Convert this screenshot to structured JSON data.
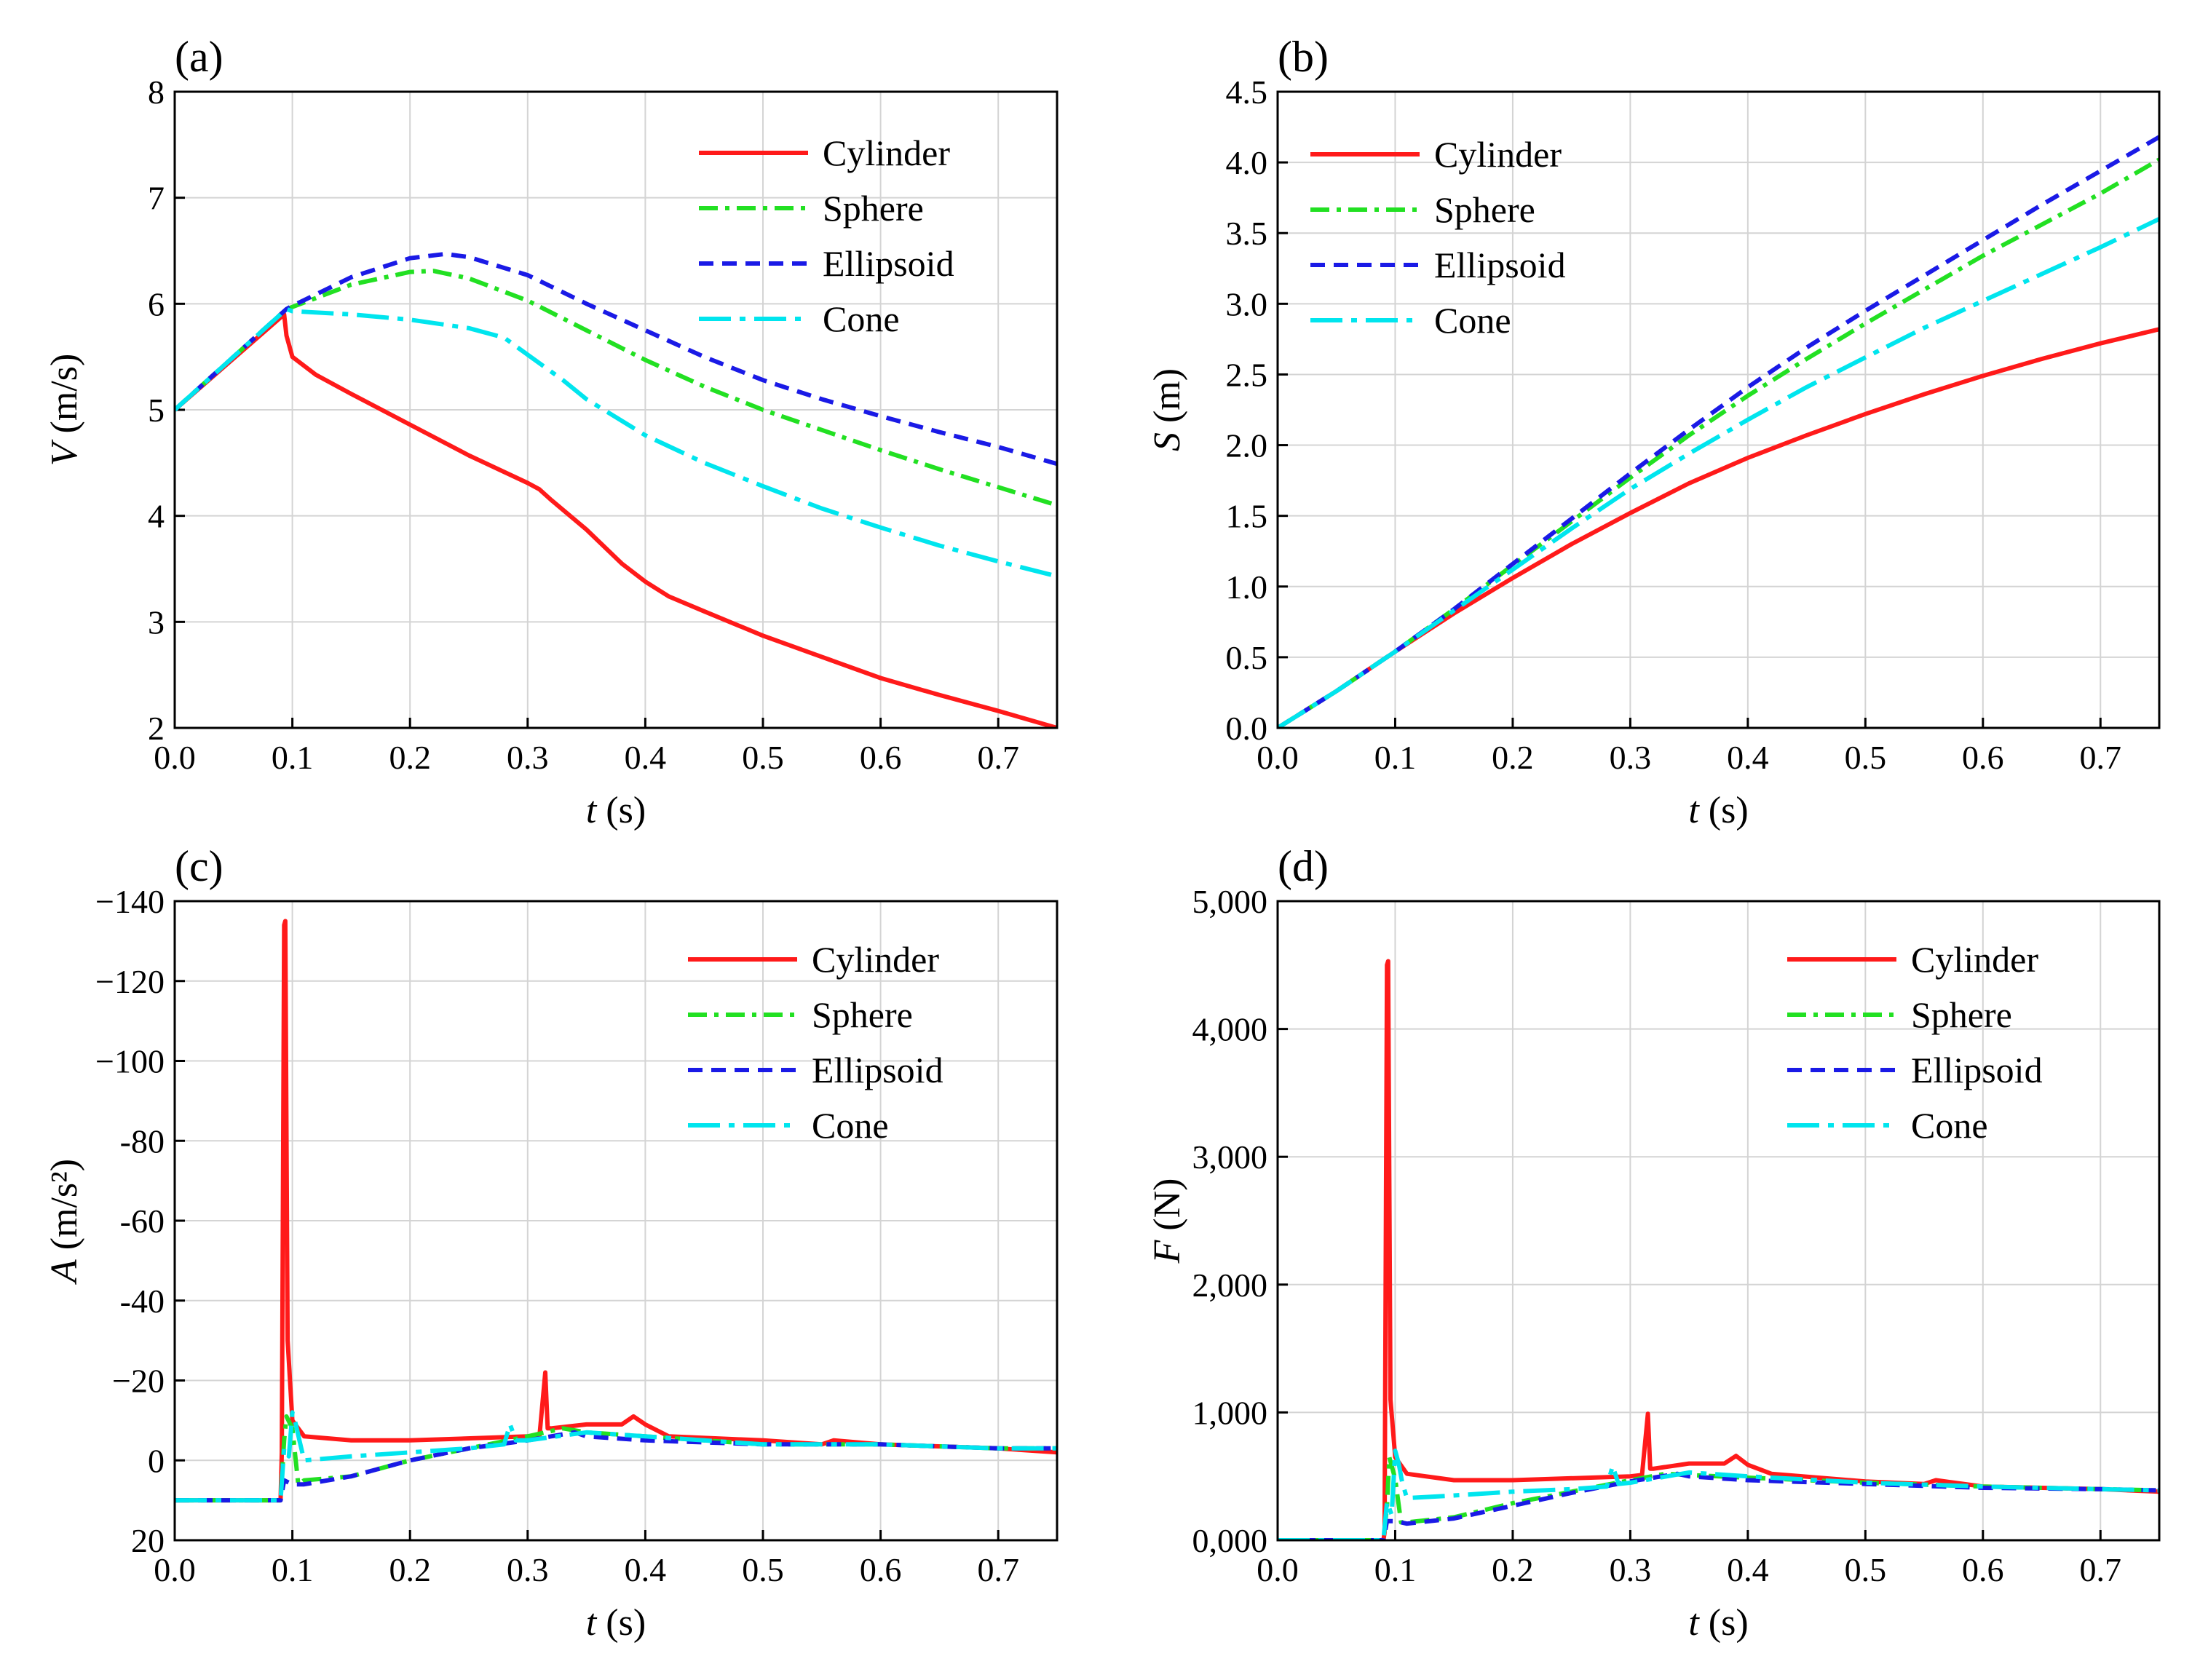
{
  "figure": {
    "colors": {
      "Cylinder": "#ff1a1a",
      "Sphere": "#22e022",
      "Ellipsoid": "#1a1ae6",
      "Cone": "#00e5ee"
    },
    "line_styles": {
      "Cylinder": "solid",
      "Sphere": "dash-dot",
      "Ellipsoid": "dashed",
      "Cone": "long-dash-dot"
    }
  },
  "chart_data": [
    {
      "panel": "(a)",
      "type": "line",
      "xlabel_var": "t",
      "xlabel_unit": " (s)",
      "ylabel_var": "V",
      "ylabel_unit": " (m/s)",
      "xlim": [
        0,
        0.75
      ],
      "ylim": [
        2,
        8
      ],
      "y_inverted": false,
      "xticks": [
        "0.0",
        "0.1",
        "0.2",
        "0.3",
        "0.4",
        "0.5",
        "0.6",
        "0.7"
      ],
      "yticks": [
        "2",
        "3",
        "4",
        "5",
        "6",
        "7",
        "8"
      ],
      "ytick_values": [
        2,
        3,
        4,
        5,
        6,
        7,
        8
      ],
      "grid": true,
      "legend": [
        "Cylinder",
        "Sphere",
        "Ellipsoid",
        "Cone"
      ],
      "legend_position": "top-right",
      "series": [
        {
          "name": "Cylinder",
          "x": [
            0,
            0.093,
            0.095,
            0.1,
            0.12,
            0.15,
            0.2,
            0.25,
            0.3,
            0.31,
            0.32,
            0.35,
            0.38,
            0.4,
            0.42,
            0.45,
            0.5,
            0.55,
            0.6,
            0.65,
            0.7,
            0.75
          ],
          "y": [
            5.0,
            5.9,
            5.7,
            5.5,
            5.33,
            5.15,
            4.86,
            4.57,
            4.31,
            4.25,
            4.15,
            3.87,
            3.55,
            3.38,
            3.24,
            3.1,
            2.87,
            2.67,
            2.47,
            2.31,
            2.16,
            2.0
          ]
        },
        {
          "name": "Sphere",
          "x": [
            0,
            0.095,
            0.1,
            0.15,
            0.2,
            0.22,
            0.25,
            0.3,
            0.35,
            0.4,
            0.45,
            0.5,
            0.55,
            0.6,
            0.65,
            0.7,
            0.75
          ],
          "y": [
            5.0,
            5.95,
            5.97,
            6.18,
            6.3,
            6.31,
            6.24,
            6.03,
            5.75,
            5.47,
            5.22,
            5.0,
            4.81,
            4.62,
            4.44,
            4.27,
            4.1
          ]
        },
        {
          "name": "Ellipsoid",
          "x": [
            0,
            0.095,
            0.1,
            0.15,
            0.2,
            0.23,
            0.25,
            0.3,
            0.35,
            0.4,
            0.45,
            0.5,
            0.55,
            0.6,
            0.65,
            0.7,
            0.75
          ],
          "y": [
            5.0,
            5.95,
            5.98,
            6.25,
            6.43,
            6.47,
            6.44,
            6.27,
            6.0,
            5.75,
            5.5,
            5.28,
            5.1,
            4.94,
            4.79,
            4.65,
            4.49
          ]
        },
        {
          "name": "Cone",
          "x": [
            0,
            0.095,
            0.1,
            0.15,
            0.2,
            0.25,
            0.28,
            0.3,
            0.33,
            0.35,
            0.4,
            0.45,
            0.5,
            0.55,
            0.6,
            0.65,
            0.7,
            0.75
          ],
          "y": [
            5.0,
            5.95,
            5.93,
            5.9,
            5.85,
            5.77,
            5.68,
            5.52,
            5.28,
            5.1,
            4.76,
            4.5,
            4.28,
            4.07,
            3.89,
            3.72,
            3.57,
            3.43
          ]
        }
      ]
    },
    {
      "panel": "(b)",
      "type": "line",
      "xlabel_var": "t",
      "xlabel_unit": " (s)",
      "ylabel_var": "S",
      "ylabel_unit": " (m)",
      "xlim": [
        0,
        0.75
      ],
      "ylim": [
        0,
        4.5
      ],
      "y_inverted": false,
      "xticks": [
        "0.0",
        "0.1",
        "0.2",
        "0.3",
        "0.4",
        "0.5",
        "0.6",
        "0.7"
      ],
      "yticks": [
        "0.0",
        "0.5",
        "1.0",
        "1.5",
        "2.0",
        "2.5",
        "3.0",
        "3.5",
        "4.0",
        "4.5"
      ],
      "ytick_values": [
        0,
        0.5,
        1.0,
        1.5,
        2.0,
        2.5,
        3.0,
        3.5,
        4.0,
        4.5
      ],
      "grid": true,
      "legend": [
        "Cylinder",
        "Sphere",
        "Ellipsoid",
        "Cone"
      ],
      "legend_position": "top-left",
      "series": [
        {
          "name": "Cylinder",
          "x": [
            0,
            0.05,
            0.1,
            0.15,
            0.2,
            0.25,
            0.3,
            0.35,
            0.4,
            0.45,
            0.5,
            0.55,
            0.6,
            0.65,
            0.7,
            0.75
          ],
          "y": [
            0,
            0.26,
            0.54,
            0.81,
            1.06,
            1.3,
            1.52,
            1.73,
            1.91,
            2.07,
            2.22,
            2.36,
            2.49,
            2.61,
            2.72,
            2.82
          ]
        },
        {
          "name": "Sphere",
          "x": [
            0,
            0.05,
            0.1,
            0.15,
            0.2,
            0.25,
            0.3,
            0.35,
            0.4,
            0.45,
            0.5,
            0.55,
            0.6,
            0.65,
            0.7,
            0.75
          ],
          "y": [
            0,
            0.26,
            0.54,
            0.84,
            1.15,
            1.46,
            1.77,
            2.07,
            2.35,
            2.61,
            2.86,
            3.1,
            3.34,
            3.56,
            3.78,
            4.02
          ]
        },
        {
          "name": "Ellipsoid",
          "x": [
            0,
            0.05,
            0.1,
            0.15,
            0.2,
            0.25,
            0.3,
            0.35,
            0.4,
            0.45,
            0.5,
            0.55,
            0.6,
            0.65,
            0.7,
            0.75
          ],
          "y": [
            0,
            0.26,
            0.54,
            0.84,
            1.16,
            1.48,
            1.8,
            2.11,
            2.41,
            2.69,
            2.95,
            3.2,
            3.45,
            3.7,
            3.94,
            4.18
          ]
        },
        {
          "name": "Cone",
          "x": [
            0,
            0.05,
            0.1,
            0.15,
            0.2,
            0.25,
            0.3,
            0.35,
            0.4,
            0.45,
            0.5,
            0.55,
            0.6,
            0.65,
            0.7,
            0.75
          ],
          "y": [
            0,
            0.26,
            0.54,
            0.83,
            1.12,
            1.41,
            1.69,
            1.94,
            2.18,
            2.41,
            2.62,
            2.83,
            3.02,
            3.21,
            3.4,
            3.6
          ]
        }
      ]
    },
    {
      "panel": "(c)",
      "type": "line",
      "xlabel_var": "t",
      "xlabel_unit": " (s)",
      "ylabel_var": "A",
      "ylabel_unit": " (m/s²)",
      "xlim": [
        0,
        0.75
      ],
      "ylim": [
        20,
        -140
      ],
      "y_inverted": true,
      "xticks": [
        "0.0",
        "0.1",
        "0.2",
        "0.3",
        "0.4",
        "0.5",
        "0.6",
        "0.7"
      ],
      "yticks": [
        "20",
        "0",
        "−20",
        "-40",
        "-60",
        "-80",
        "−100",
        "−120",
        "−140"
      ],
      "ytick_values": [
        20,
        0,
        -20,
        -40,
        -60,
        -80,
        -100,
        -120,
        -140
      ],
      "grid": true,
      "legend": [
        "Cylinder",
        "Sphere",
        "Ellipsoid",
        "Cone"
      ],
      "legend_position": "top-right",
      "series": [
        {
          "name": "Cylinder",
          "x": [
            0,
            0.09,
            0.091,
            0.093,
            0.094,
            0.096,
            0.1,
            0.11,
            0.15,
            0.2,
            0.3,
            0.31,
            0.315,
            0.317,
            0.32,
            0.35,
            0.38,
            0.39,
            0.4,
            0.42,
            0.5,
            0.55,
            0.56,
            0.6,
            0.7,
            0.75
          ],
          "y": [
            10,
            10,
            -2,
            -134,
            -135,
            -30,
            -10,
            -6,
            -5,
            -5,
            -6,
            -6,
            -22,
            -8,
            -8,
            -9,
            -9,
            -11,
            -9,
            -6,
            -5,
            -4,
            -5,
            -4,
            -3,
            -2
          ]
        },
        {
          "name": "Sphere",
          "x": [
            0,
            0.09,
            0.093,
            0.095,
            0.1,
            0.105,
            0.11,
            0.15,
            0.2,
            0.25,
            0.3,
            0.33,
            0.35,
            0.4,
            0.5,
            0.6,
            0.7,
            0.75
          ],
          "y": [
            10,
            10,
            -5,
            -11,
            -8,
            6,
            5,
            4,
            0,
            -3,
            -6,
            -8,
            -7,
            -6,
            -4,
            -4,
            -3,
            -3
          ]
        },
        {
          "name": "Ellipsoid",
          "x": [
            0,
            0.09,
            0.093,
            0.1,
            0.11,
            0.15,
            0.2,
            0.25,
            0.3,
            0.34,
            0.35,
            0.4,
            0.5,
            0.6,
            0.7,
            0.75
          ],
          "y": [
            10,
            10,
            5,
            6,
            6,
            4,
            0,
            -3,
            -5,
            -7,
            -6,
            -5,
            -4,
            -4,
            -3,
            -3
          ]
        },
        {
          "name": "Cone",
          "x": [
            0,
            0.09,
            0.093,
            0.097,
            0.1,
            0.103,
            0.106,
            0.11,
            0.15,
            0.2,
            0.25,
            0.28,
            0.285,
            0.29,
            0.3,
            0.35,
            0.4,
            0.5,
            0.6,
            0.7,
            0.75
          ],
          "y": [
            10,
            10,
            -3,
            -1,
            -12,
            -9,
            -5,
            0,
            -1,
            -2,
            -3,
            -4,
            -9,
            -5,
            -5,
            -7,
            -6,
            -4,
            -4,
            -3,
            -3
          ]
        }
      ]
    },
    {
      "panel": "(d)",
      "type": "line",
      "xlabel_var": "t",
      "xlabel_unit": " (s)",
      "ylabel_var": "F",
      "ylabel_unit": " (N)",
      "xlim": [
        0,
        0.75
      ],
      "ylim": [
        0,
        5000
      ],
      "y_inverted": false,
      "xticks": [
        "0.0",
        "0.1",
        "0.2",
        "0.3",
        "0.4",
        "0.5",
        "0.6",
        "0.7"
      ],
      "yticks": [
        "0,000",
        "1,000",
        "2,000",
        "3,000",
        "4,000",
        "5,000"
      ],
      "ytick_values": [
        0,
        1000,
        2000,
        3000,
        4000,
        5000
      ],
      "grid": true,
      "legend": [
        "Cylinder",
        "Sphere",
        "Ellipsoid",
        "Cone"
      ],
      "legend_position": "top-right",
      "series": [
        {
          "name": "Cylinder",
          "x": [
            0,
            0.09,
            0.091,
            0.093,
            0.094,
            0.096,
            0.1,
            0.11,
            0.15,
            0.2,
            0.3,
            0.31,
            0.315,
            0.317,
            0.32,
            0.35,
            0.38,
            0.39,
            0.4,
            0.42,
            0.5,
            0.55,
            0.56,
            0.6,
            0.7,
            0.75
          ],
          "y": [
            0,
            0,
            60,
            4500,
            4530,
            1100,
            650,
            520,
            470,
            470,
            500,
            510,
            990,
            560,
            560,
            600,
            600,
            660,
            590,
            520,
            460,
            440,
            470,
            420,
            400,
            380
          ]
        },
        {
          "name": "Sphere",
          "x": [
            0,
            0.09,
            0.093,
            0.095,
            0.1,
            0.105,
            0.11,
            0.15,
            0.2,
            0.25,
            0.3,
            0.33,
            0.35,
            0.4,
            0.5,
            0.6,
            0.7,
            0.75
          ],
          "y": [
            0,
            0,
            260,
            650,
            480,
            140,
            140,
            180,
            290,
            380,
            470,
            520,
            510,
            490,
            450,
            420,
            400,
            390
          ]
        },
        {
          "name": "Ellipsoid",
          "x": [
            0,
            0.09,
            0.093,
            0.1,
            0.11,
            0.15,
            0.2,
            0.25,
            0.3,
            0.34,
            0.35,
            0.4,
            0.5,
            0.6,
            0.7,
            0.75
          ],
          "y": [
            0,
            0,
            150,
            150,
            130,
            170,
            270,
            370,
            460,
            520,
            500,
            470,
            440,
            410,
            400,
            390
          ]
        },
        {
          "name": "Cone",
          "x": [
            0,
            0.09,
            0.093,
            0.097,
            0.1,
            0.103,
            0.106,
            0.11,
            0.15,
            0.2,
            0.25,
            0.28,
            0.285,
            0.29,
            0.3,
            0.35,
            0.4,
            0.5,
            0.6,
            0.7,
            0.75
          ],
          "y": [
            0,
            0,
            300,
            200,
            700,
            600,
            450,
            330,
            350,
            380,
            400,
            420,
            580,
            440,
            450,
            530,
            500,
            450,
            420,
            400,
            390
          ]
        }
      ]
    }
  ]
}
